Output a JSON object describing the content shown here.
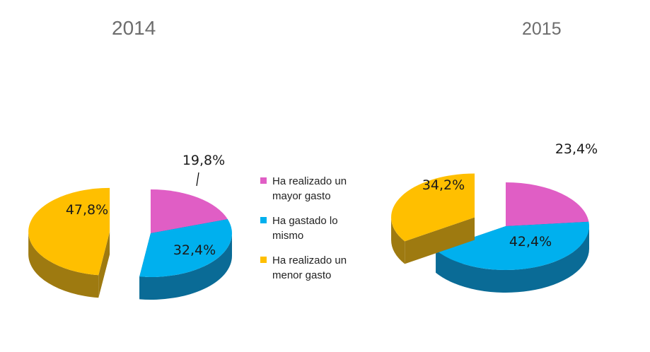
{
  "colors": {
    "mayor": "#e05ec5",
    "mayor_side": "#6b2a50",
    "mismo": "#00b0ee",
    "mismo_side": "#0a6b96",
    "menor": "#ffbf00",
    "menor_side": "#9e7a10"
  },
  "legend": [
    {
      "label": "Ha realizado  un\nmayor gasto",
      "color_key": "mayor"
    },
    {
      "label": "Ha gastado lo\nmismo",
      "color_key": "mismo"
    },
    {
      "label": "Ha realizado un\nmenor gasto",
      "color_key": "menor"
    }
  ],
  "chart_data": [
    {
      "type": "pie",
      "title": "2014",
      "categories": [
        "Ha realizado  un mayor gasto",
        "Ha gastado lo mismo",
        "Ha realizado un menor gasto"
      ],
      "values": [
        19.8,
        32.4,
        47.8
      ],
      "labels": [
        "19,8%",
        "32,4%",
        "47,8%"
      ],
      "exploded": [
        false,
        false,
        true
      ]
    },
    {
      "type": "pie",
      "title": "2015",
      "categories": [
        "Ha realizado  un mayor gasto",
        "Ha gastado lo mismo",
        "Ha realizado un menor gasto"
      ],
      "values": [
        23.4,
        42.4,
        34.2
      ],
      "labels": [
        "23,4%",
        "42,4%",
        "34,2%"
      ],
      "exploded": [
        false,
        false,
        true
      ]
    }
  ]
}
